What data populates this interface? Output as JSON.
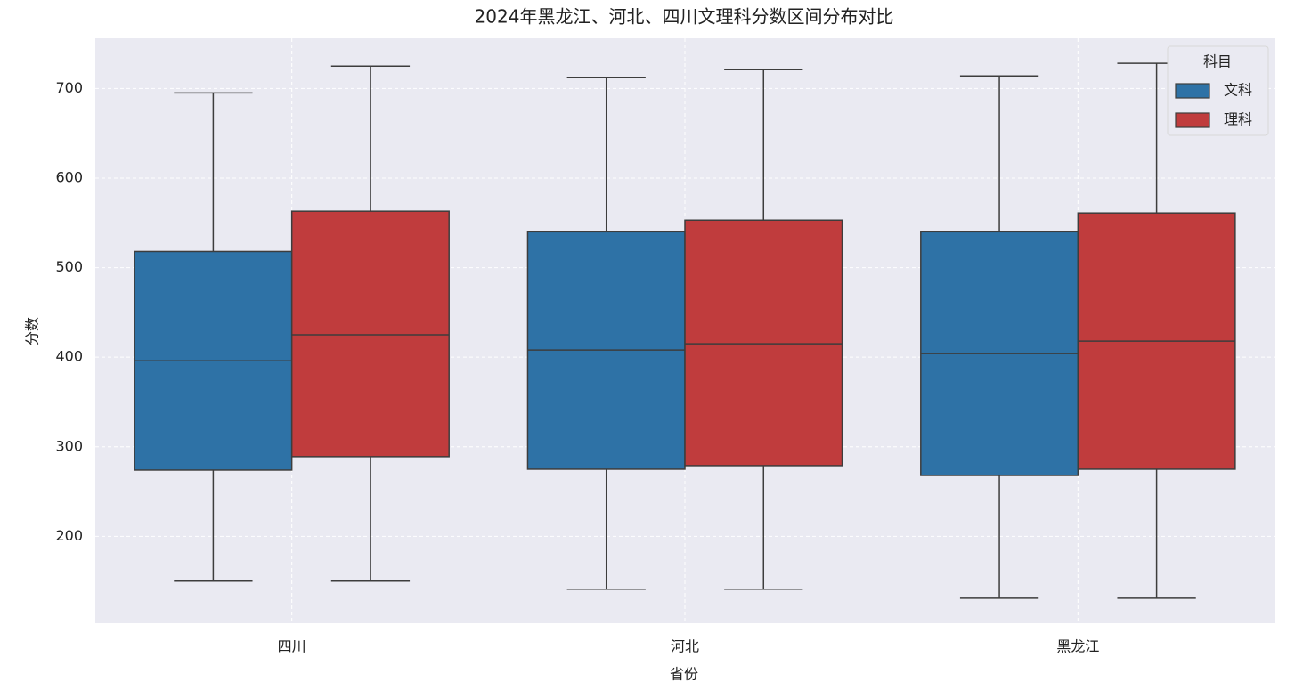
{
  "chart_data": {
    "type": "boxplot",
    "title": "2024年黑龙江、河北、四川文理科分数区间分布对比",
    "x_label": "省份",
    "y_label": "分数",
    "categories": [
      "四川",
      "河北",
      "黑龙江"
    ],
    "series": [
      {
        "name": "文科",
        "color": "#2e72a6",
        "whisker_low": [
          150,
          141,
          131
        ],
        "q1": [
          274,
          275,
          268
        ],
        "median": [
          396,
          408,
          404
        ],
        "q3": [
          518,
          540,
          540
        ],
        "whisker_high": [
          695,
          712,
          714
        ]
      },
      {
        "name": "理科",
        "color": "#c03c3d",
        "whisker_low": [
          150,
          141,
          131
        ],
        "q1": [
          289,
          279,
          275
        ],
        "median": [
          425,
          415,
          418
        ],
        "q3": [
          563,
          553,
          561
        ],
        "whisker_high": [
          725,
          721,
          728
        ]
      }
    ],
    "ylim": [
      103,
      756
    ],
    "yticks": [
      200,
      300,
      400,
      500,
      600,
      700
    ],
    "grid": true,
    "legend_title": "科目",
    "legend_position": "upper right"
  }
}
